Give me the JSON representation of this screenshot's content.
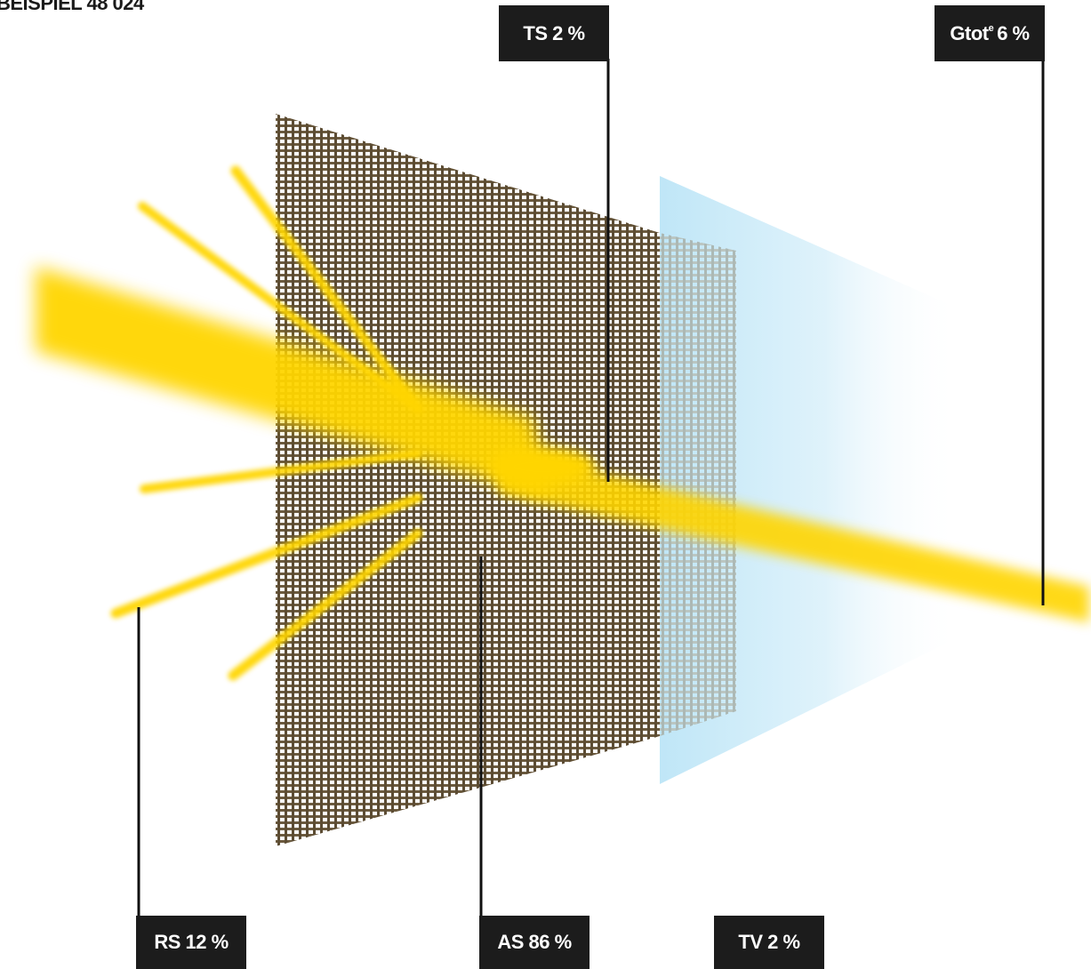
{
  "title": "BEISPIEL 48 024",
  "labels": {
    "ts": {
      "prefix": "TS",
      "sup": "",
      "value": "2 %"
    },
    "gtot": {
      "prefix": "Gtot",
      "sup": "e",
      "value": "6 %"
    },
    "rs": {
      "prefix": "RS",
      "sup": "",
      "value": "12 %"
    },
    "as": {
      "prefix": "AS",
      "sup": "",
      "value": "86 %"
    },
    "tv": {
      "prefix": "TV",
      "sup": "",
      "value": "2 %"
    }
  },
  "colors": {
    "light_ray": "#ffd500",
    "fabric_thread": "#6b5a3e",
    "glass": "#bfe6f7",
    "label_bg": "#1c1c1c",
    "label_text": "#ffffff"
  }
}
